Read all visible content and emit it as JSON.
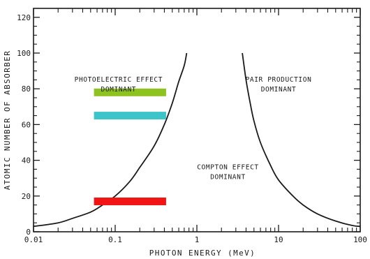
{
  "chart_data": {
    "type": "line",
    "xlabel": "PHOTON ENERGY (MeV)",
    "ylabel": "ATOMIC NUMBER OF ABSORBER",
    "xscale": "log",
    "xlim": [
      0.01,
      100
    ],
    "ylim": [
      0,
      125
    ],
    "x_ticks": [
      {
        "value": 0.01,
        "label": "0.01"
      },
      {
        "value": 0.1,
        "label": "0.1"
      },
      {
        "value": 1,
        "label": "1"
      },
      {
        "value": 10,
        "label": "10"
      },
      {
        "value": 100,
        "label": "100"
      }
    ],
    "y_ticks": [
      {
        "value": 0,
        "label": "0"
      },
      {
        "value": 20,
        "label": "20"
      },
      {
        "value": 40,
        "label": "40"
      },
      {
        "value": 60,
        "label": "60"
      },
      {
        "value": 80,
        "label": "80"
      },
      {
        "value": 100,
        "label": "100"
      },
      {
        "value": 120,
        "label": "120"
      }
    ],
    "curves": [
      {
        "id": "photo-compton",
        "points": [
          [
            0.01,
            3
          ],
          [
            0.02,
            5
          ],
          [
            0.03,
            7.5
          ],
          [
            0.05,
            11
          ],
          [
            0.07,
            15
          ],
          [
            0.1,
            20
          ],
          [
            0.15,
            28
          ],
          [
            0.2,
            36
          ],
          [
            0.3,
            48
          ],
          [
            0.4,
            60
          ],
          [
            0.5,
            72
          ],
          [
            0.6,
            84
          ],
          [
            0.7,
            93
          ],
          [
            0.75,
            100
          ]
        ]
      },
      {
        "id": "compton-pair",
        "points": [
          [
            3.6,
            100
          ],
          [
            4,
            85
          ],
          [
            4.5,
            72
          ],
          [
            5,
            62
          ],
          [
            6,
            50
          ],
          [
            8,
            37
          ],
          [
            10,
            29
          ],
          [
            15,
            20
          ],
          [
            20,
            15
          ],
          [
            30,
            10
          ],
          [
            50,
            6
          ],
          [
            80,
            3.5
          ],
          [
            100,
            3
          ]
        ]
      }
    ],
    "regions": [
      {
        "id": "photoelectric",
        "lines": [
          "PHOTOELECTRIC EFFECT",
          "DOMINANT"
        ],
        "x": 0.11,
        "y": 84
      },
      {
        "id": "compton",
        "lines": [
          "COMPTON EFFECT",
          "DOMINANT"
        ],
        "x": 2.4,
        "y": 35
      },
      {
        "id": "pair",
        "lines": [
          "PAIR PRODUCTION",
          "DOMINANT"
        ],
        "x": 10,
        "y": 84
      }
    ],
    "markers": [
      {
        "id": "green",
        "color": "#8dc21f",
        "x_start": 0.055,
        "x_end": 0.42,
        "y": 78
      },
      {
        "id": "cyan",
        "color": "#3cc4c8",
        "x_start": 0.055,
        "x_end": 0.42,
        "y": 65
      },
      {
        "id": "red",
        "color": "#f01414",
        "x_start": 0.055,
        "x_end": 0.42,
        "y": 17
      }
    ]
  }
}
